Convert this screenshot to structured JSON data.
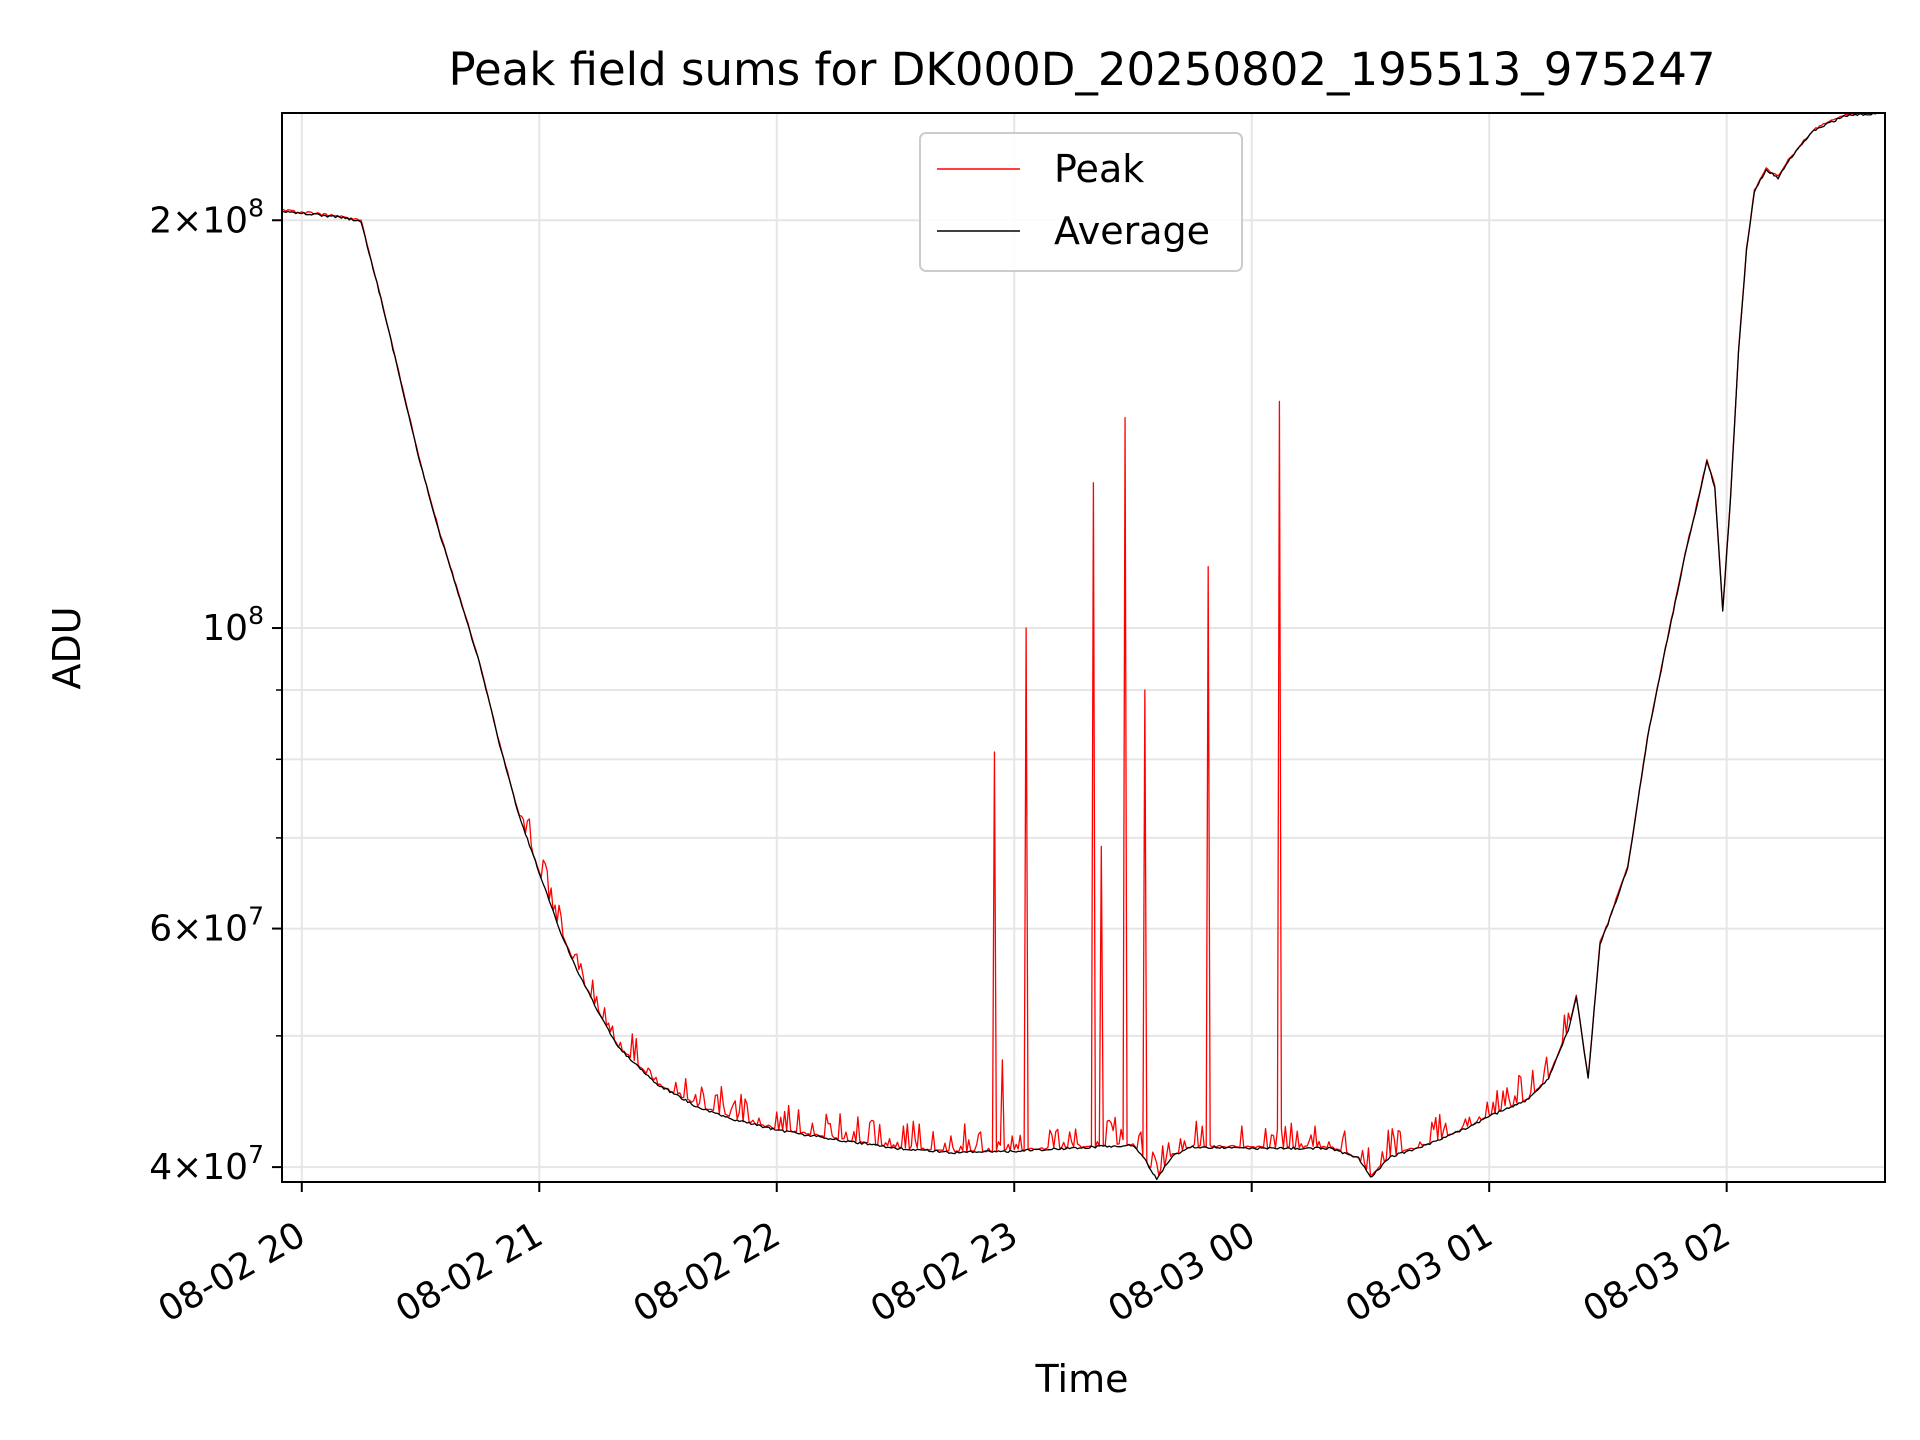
{
  "chart_data": {
    "type": "line",
    "title": "Peak field sums for DK000D_20250802_195513_975247",
    "xlabel": "Time",
    "ylabel": "ADU",
    "y_scale": "log",
    "ylim": [
      39000000,
      240000000
    ],
    "xlim": [
      "2025-08-02 19:55",
      "2025-08-03 02:40"
    ],
    "grid": true,
    "legend": {
      "placement": "top-center"
    },
    "x_ticks": [
      {
        "t": "2025-08-02 20:00",
        "label": "08-02 20"
      },
      {
        "t": "2025-08-02 21:00",
        "label": "08-02 21"
      },
      {
        "t": "2025-08-02 22:00",
        "label": "08-02 22"
      },
      {
        "t": "2025-08-02 23:00",
        "label": "08-02 23"
      },
      {
        "t": "2025-08-03 00:00",
        "label": "08-03 00"
      },
      {
        "t": "2025-08-03 01:00",
        "label": "08-03 01"
      },
      {
        "t": "2025-08-03 02:00",
        "label": "08-03 02"
      }
    ],
    "y_ticks": [
      {
        "v": 40000000,
        "mant": "4",
        "exp": "7"
      },
      {
        "v": 60000000,
        "mant": "6",
        "exp": "7"
      },
      {
        "v": 100000000,
        "mant": "",
        "exp": "8"
      },
      {
        "v": 200000000,
        "mant": "2",
        "exp": "8"
      }
    ],
    "y_minor_ticks": [
      50000000,
      70000000,
      80000000,
      90000000
    ],
    "series": [
      {
        "name": "Average",
        "color": "#000000",
        "points": [
          [
            "2025-08-02 19:55",
            203000000
          ],
          [
            "2025-08-02 20:10",
            201000000
          ],
          [
            "2025-08-02 20:15",
            199500000
          ],
          [
            "2025-08-02 20:20",
            175000000
          ],
          [
            "2025-08-02 20:25",
            152000000
          ],
          [
            "2025-08-02 20:30",
            132000000
          ],
          [
            "2025-08-02 20:35",
            117000000
          ],
          [
            "2025-08-02 20:40",
            105000000
          ],
          [
            "2025-08-02 20:45",
            94000000
          ],
          [
            "2025-08-02 20:50",
            82000000
          ],
          [
            "2025-08-02 20:55",
            72500000
          ],
          [
            "2025-08-02 21:00",
            66000000
          ],
          [
            "2025-08-02 21:05",
            60000000
          ],
          [
            "2025-08-02 21:10",
            55500000
          ],
          [
            "2025-08-02 21:15",
            52000000
          ],
          [
            "2025-08-02 21:20",
            49000000
          ],
          [
            "2025-08-02 21:30",
            46000000
          ],
          [
            "2025-08-02 21:40",
            44300000
          ],
          [
            "2025-08-02 21:50",
            43300000
          ],
          [
            "2025-08-02 22:00",
            42600000
          ],
          [
            "2025-08-02 22:15",
            41900000
          ],
          [
            "2025-08-02 22:30",
            41300000
          ],
          [
            "2025-08-02 22:45",
            41000000
          ],
          [
            "2025-08-02 23:00",
            41100000
          ],
          [
            "2025-08-02 23:20",
            41400000
          ],
          [
            "2025-08-02 23:30",
            41500000
          ],
          [
            "2025-08-02 23:33",
            40500000
          ],
          [
            "2025-08-02 23:36",
            39200000
          ],
          [
            "2025-08-02 23:40",
            40800000
          ],
          [
            "2025-08-02 23:45",
            41400000
          ],
          [
            "2025-08-03 00:00",
            41300000
          ],
          [
            "2025-08-03 00:20",
            41300000
          ],
          [
            "2025-08-03 00:27",
            40600000
          ],
          [
            "2025-08-03 00:30",
            39300000
          ],
          [
            "2025-08-03 00:35",
            40700000
          ],
          [
            "2025-08-03 00:45",
            41600000
          ],
          [
            "2025-08-03 00:55",
            42800000
          ],
          [
            "2025-08-03 01:00",
            43600000
          ],
          [
            "2025-08-03 01:10",
            44900000
          ],
          [
            "2025-08-03 01:15",
            46500000
          ],
          [
            "2025-08-03 01:20",
            50500000
          ],
          [
            "2025-08-03 01:22",
            53500000
          ],
          [
            "2025-08-03 01:25",
            46500000
          ],
          [
            "2025-08-03 01:28",
            58500000
          ],
          [
            "2025-08-03 01:30",
            60500000
          ],
          [
            "2025-08-03 01:35",
            66500000
          ],
          [
            "2025-08-03 01:40",
            83000000
          ],
          [
            "2025-08-03 01:45",
            98000000
          ],
          [
            "2025-08-03 01:50",
            115000000
          ],
          [
            "2025-08-03 01:53",
            125000000
          ],
          [
            "2025-08-03 01:55",
            133000000
          ],
          [
            "2025-08-03 01:57",
            127000000
          ],
          [
            "2025-08-03 01:59",
            103000000
          ],
          [
            "2025-08-03 02:01",
            125000000
          ],
          [
            "2025-08-03 02:03",
            160000000
          ],
          [
            "2025-08-03 02:05",
            190000000
          ],
          [
            "2025-08-03 02:07",
            210000000
          ],
          [
            "2025-08-03 02:10",
            218000000
          ],
          [
            "2025-08-03 02:13",
            215000000
          ],
          [
            "2025-08-03 02:16",
            222000000
          ],
          [
            "2025-08-03 02:22",
            233000000
          ],
          [
            "2025-08-03 02:30",
            239000000
          ],
          [
            "2025-08-03 02:40",
            240000000
          ]
        ]
      },
      {
        "name": "Peak",
        "color": "#ff0000",
        "noise_range": [
          "2025-08-02 20:55",
          "2025-08-03 01:20"
        ],
        "spikes": [
          [
            "2025-08-02 22:55",
            81000000
          ],
          [
            "2025-08-02 22:57",
            48000000
          ],
          [
            "2025-08-02 23:03",
            100000000
          ],
          [
            "2025-08-02 23:20",
            128000000
          ],
          [
            "2025-08-02 23:22",
            69000000
          ],
          [
            "2025-08-02 23:28",
            143000000
          ],
          [
            "2025-08-02 23:33",
            90000000
          ],
          [
            "2025-08-02 23:49",
            111000000
          ],
          [
            "2025-08-03 00:07",
            147000000
          ]
        ]
      }
    ]
  }
}
